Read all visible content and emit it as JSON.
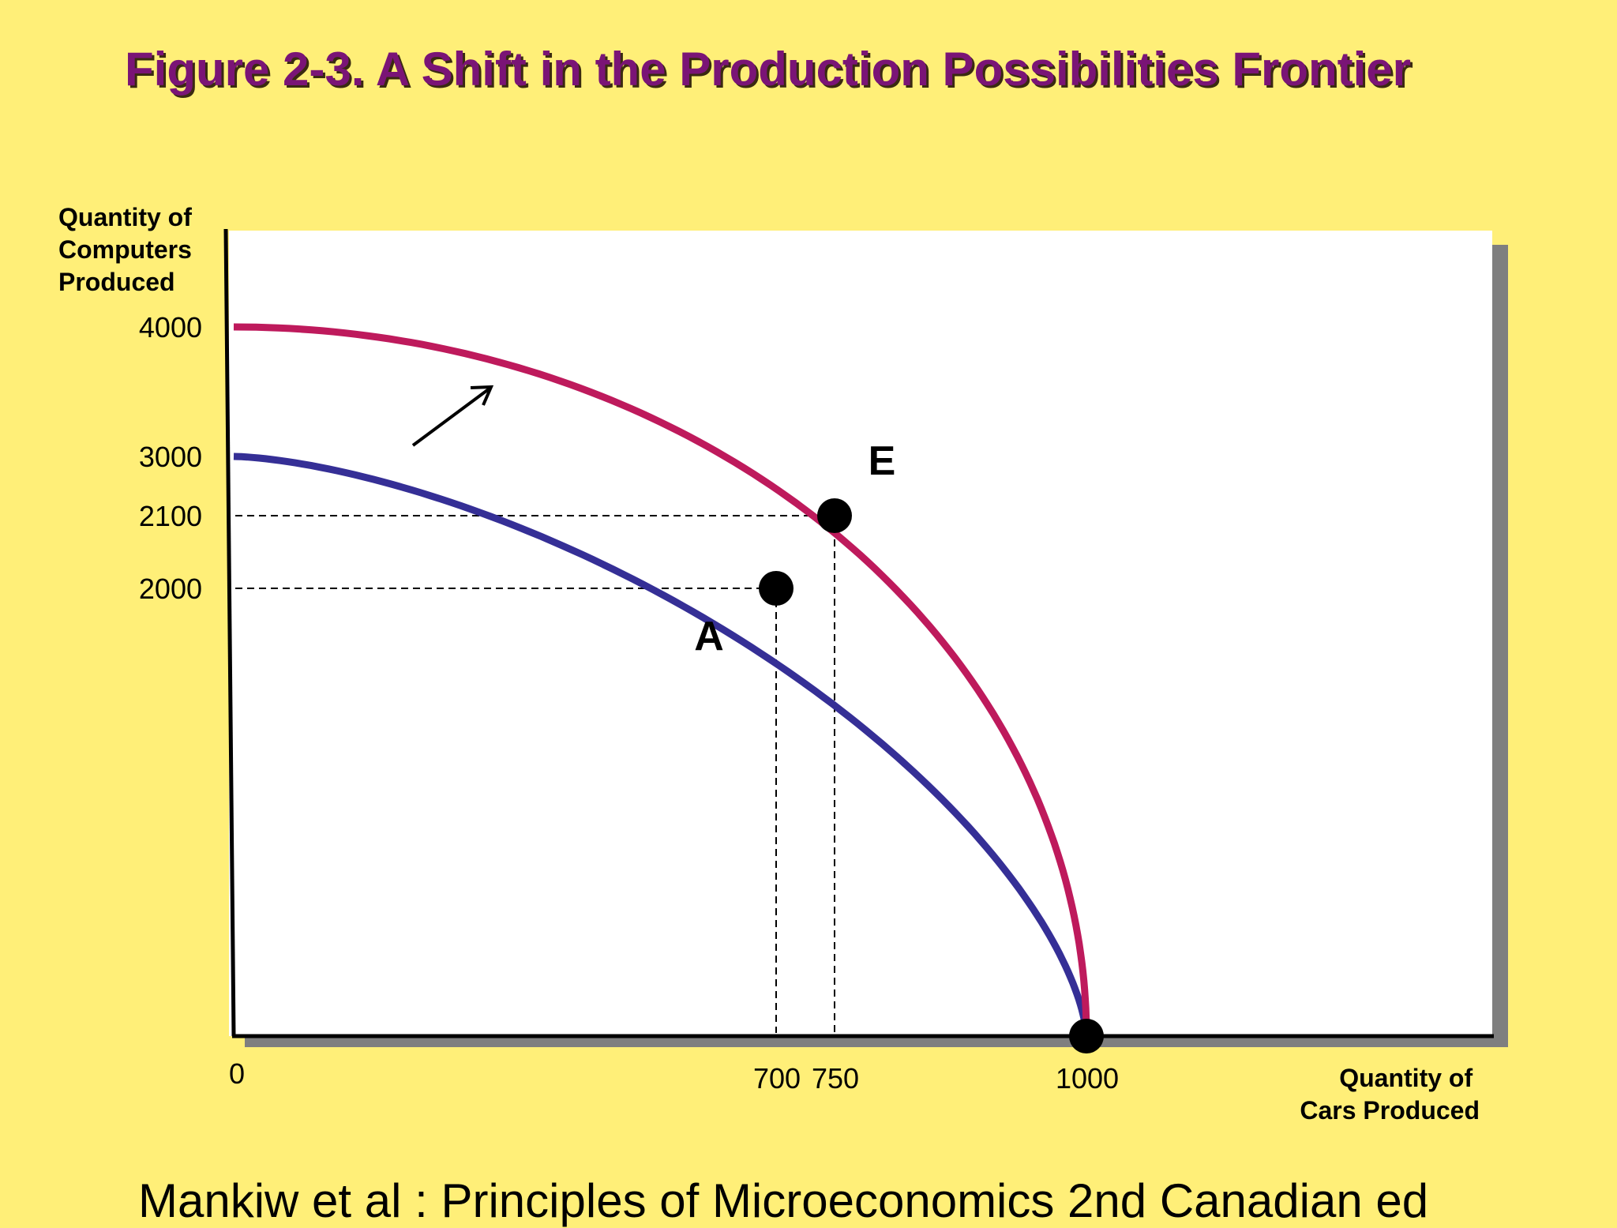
{
  "title": "Figure 2-3. A Shift in the Production Possibilities Frontier",
  "footer": "Mankiw et al : Principles of Microeconomics 2nd Canadian ed",
  "colors": {
    "background": "#FFEF78",
    "title": "#7A1476",
    "original_frontier": "#352F96",
    "new_frontier": "#BE1A5C",
    "shadow": "#7F7F7F"
  },
  "chart_data": {
    "type": "line",
    "ylabel_lines": [
      "Quantity of",
      "Computers",
      "Produced"
    ],
    "xlabel_lines": [
      "Quantity of",
      "Cars Produced"
    ],
    "x_origin_label": "0",
    "x_ticks": [
      700,
      750,
      1000
    ],
    "y_ticks": [
      2000,
      2100,
      3000,
      4000
    ],
    "series": [
      {
        "color": "#352F96",
        "x_intercept": 1000,
        "y_intercept": 3000
      },
      {
        "color": "#BE1A5C",
        "x_intercept": 1000,
        "y_intercept": 4000
      }
    ],
    "points": [
      {
        "label": "A",
        "x": 700,
        "y": 2000
      },
      {
        "label": "E",
        "x": 750,
        "y": 2100
      },
      {
        "label": "",
        "x": 1000,
        "y": 0
      }
    ],
    "annotations": [
      {
        "type": "arrow",
        "direction": "outward",
        "meaning": "frontier shifts outward"
      }
    ],
    "grid": false
  }
}
